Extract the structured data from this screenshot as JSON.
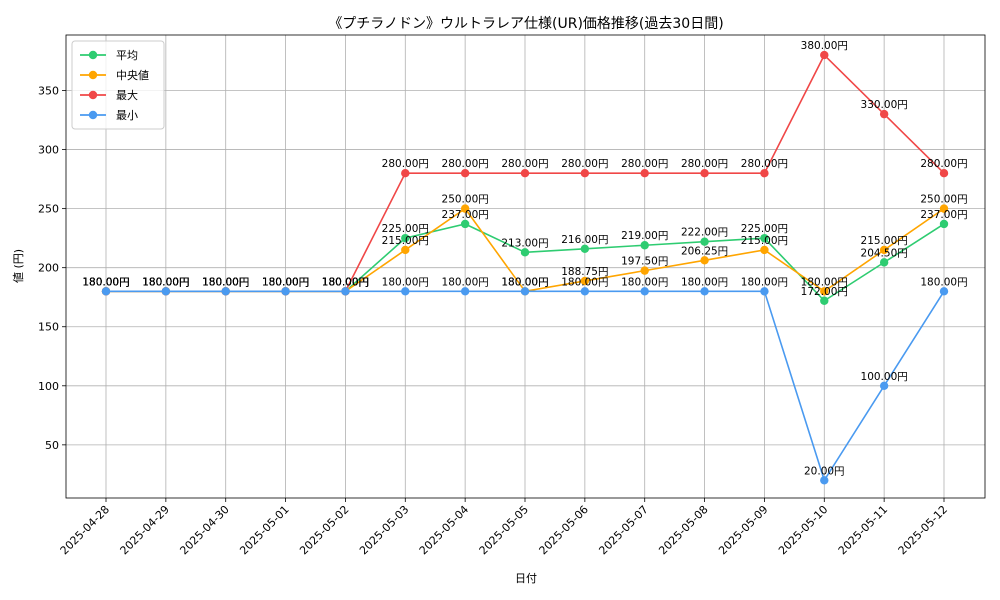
{
  "chart_data": {
    "type": "line",
    "title": "《プチラノドン》ウルトラレア仕様(UR)価格推移(過去30日間)",
    "xlabel": "日付",
    "ylabel": "値 (円)",
    "ylim": [
      5,
      397
    ],
    "yticks": [
      50,
      100,
      150,
      200,
      250,
      300,
      350
    ],
    "grid": true,
    "legend_position": "top-left",
    "label_suffix": "円",
    "categories": [
      "2025-04-28",
      "2025-04-29",
      "2025-04-30",
      "2025-05-01",
      "2025-05-02",
      "2025-05-03",
      "2025-05-04",
      "2025-05-05",
      "2025-05-06",
      "2025-05-07",
      "2025-05-08",
      "2025-05-09",
      "2025-05-10",
      "2025-05-11",
      "2025-05-12"
    ],
    "series": [
      {
        "name": "平均",
        "color": "#2ecc71",
        "values": [
          180,
          180,
          180,
          180,
          180,
          225,
          237,
          213,
          216,
          219,
          222,
          225,
          172,
          204.5,
          237
        ]
      },
      {
        "name": "中央値",
        "color": "#ffa500",
        "values": [
          180,
          180,
          180,
          180,
          180,
          215,
          250,
          180,
          188.75,
          197.5,
          206.25,
          215,
          180,
          215,
          250
        ]
      },
      {
        "name": "最大",
        "color": "#f04747",
        "values": [
          180,
          180,
          180,
          180,
          180,
          280,
          280,
          280,
          280,
          280,
          280,
          280,
          380,
          330,
          280
        ]
      },
      {
        "name": "最小",
        "color": "#4a9af0",
        "values": [
          180,
          180,
          180,
          180,
          180,
          180,
          180,
          180,
          180,
          180,
          180,
          180,
          20,
          100,
          180
        ]
      }
    ]
  }
}
